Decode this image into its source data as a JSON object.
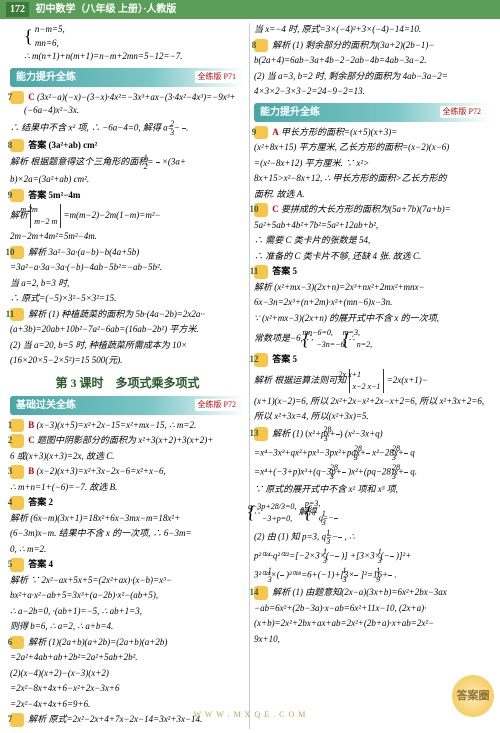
{
  "header": {
    "page": "172",
    "title": "初中数学（八年级 上册）·人教版"
  },
  "sections": {
    "s1": {
      "title": "能力提升全练",
      "ref": "全练版 P71"
    },
    "s2": {
      "title": "基础过关全练",
      "ref": "全练版 P72"
    },
    "s3": {
      "title": "能力提升全练",
      "ref": "全练版 P72"
    }
  },
  "lesson": "第 3 课时　多项式乘多项式",
  "left": {
    "top1": "n−m=5,",
    "top2": "mn=6,",
    "top3": "∴ m(n+1)+n(m+1)=n−m+2mn=5−12=−7.",
    "q7n": "7",
    "q7a": "C",
    "q7l1": "(3x²−a)(−x)−(3−x)·4x²=−3x³+ax−(3·4x²−4x³)=−9x³+(−6a−4)x²−3x.",
    "q7l2": "∴ 结果中不含 x² 项, ∴ −6a−4=0, 解得 a=−",
    "q7f": "2/3",
    "q8n": "8",
    "q8t": "答案  (3a²+ab) cm²",
    "q8l1": "解析  根据题意得这个三角形的面积=",
    "q8f": "1/2",
    "q8l1b": "×(3a+",
    "q8l2": "b)×2a=(3a²+ab) cm².",
    "q9n": "9",
    "q9t": "答案  5m²−4m",
    "q9l1": "解析",
    "q9d": "m  2m / m−2  m",
    "q9l1b": "=m(m−2)−2m(1−m)=m²−",
    "q9l2": "2m−2m+4m²=5m²−4m.",
    "q10n": "10",
    "q10l1": "解析  3a²−3a·(a−b)−b(4a+5b)",
    "q10l2": "=3a²−a·3a−3a·(−b)−4ab−5b²=−ab−5b².",
    "q10l3": "当 a=2, b=3 时,",
    "q10l4": "∴ 原式=(−5)×3²−5×3²=15.",
    "q11n": "11",
    "q11l1": "解析  (1) 种植蔬菜的面积为 5b·(4a−2b)=2x2a··",
    "q11l2": "(a+3b)=20ab+10b²−7a²−6ab=(16ab−2b²) 平方米.",
    "q11l3": "(2) 当 a=20, b=5 时, 种植蔬菜所需成本为 10×",
    "q11l4": "(16×20×5−2×5²)=15 500(元)."
  },
  "leftB": {
    "q1n": "1",
    "q1a": "B",
    "q1t": "(x−3)(x+5)=x²+2x−15=x²+mx−15, ∴ m=2.",
    "q2n": "2",
    "q2a": "C",
    "q2t": "题图中阴影部分的面积为 x²+3(x+2)+3(x+2)+",
    "q2l2": "6 或(x+3)(x+3)=2x, 故选 C.",
    "q3n": "3",
    "q3a": "B",
    "q3t": "(x−2)(x+3)=x²+3x−2x−6=x²+x−6,",
    "q3l2": "∴ m+n=1+(−6)=−7. 故选 B.",
    "q4n": "4",
    "q4t": "答案  2",
    "q4l1": "解析  (6x−m)(3x+1)=18x²+6x−3mx−m=18x²+",
    "q4l2": "(6−3m)x−m. 结果中不含 x 的一次项, ∴ 6−3m=",
    "q4l3": "0, ∴ m=2.",
    "q5n": "5",
    "q5t": "答案  4",
    "q5l1": "解析  ∵ 2x²−ax+5x+5=(2x²+ax)·(x−b)=x³−",
    "q5l2": "bx²+a·x²−ab+5=3x³+(a−2b)·x²−(ab+5),",
    "q5l3": "∴ a−2b=0, ·(ab+1)=−5, ∴ ab+1=3,",
    "q5l4": "则得 b=6, ∴ a=2, ∴ a+b=4.",
    "q6n": "6",
    "q6l1": "解析  (1)(2a+b)(a+2b)=(2a+b)(a+2b)",
    "q6l2": "=2a²+4ab+ab+2b²=2a²+5ab+2b².",
    "q6l3": "(2)(x−4)(x+2)−(x−3)(x+2)",
    "q6l4": "=2x²−8x+4x+6−x²+2x−3x+6",
    "q6l5": "=2x²−4x+4x+6=9+6.",
    "q7bn": "7",
    "q7bl": "解析  原式=2x²−2x+4+7x−2x−14=3x²+3x−14."
  },
  "right": {
    "top1": "当 x=−4 时, 原式=3×(−4)²+3×(−4)−14=10.",
    "q8n": "8",
    "q8l1": "解析  (1) 剩余部分的面积为(3a+2)(2b−1)−",
    "q8l2": "b(2a+4)=6ab−3a+4b−2−2ab−4b=4ab−3a−2.",
    "q8l3": "(2) 当 a=3, b=2 时, 剩余部分的面积为 4ab−3a−2=",
    "q8l4": "4×3×2−3×3−2=24−9−2=13.",
    "q9n": "9",
    "q9a": "A",
    "q9t": "甲长方形的面积=(x+5)(x+3)=",
    "q9l2": "(x²+8x+15) 平方厘米, 乙长方形的面积=(x−2)(x−6)",
    "q9l3": "=(x²−8x+12) 平方厘米. ∵ x²>",
    "q9l4": "8x+15>x²−8x+12, ∴ 甲长方形的面积>乙长方形的",
    "q9l5": "面积. 故选 A.",
    "q10n": "10",
    "q10a": "C",
    "q10t": "要拼成的大长方形的面积为(5a+7b)(7a+b)=",
    "q10l2": "5a²+5ab+4b²+7b²=5a²+12ab+b²,",
    "q10l3": "∴ 需要 C 类卡片的张数是 54,",
    "q10l4": "∴ 准备的 C 类卡片不够, 还缺 4 张. 故选 C.",
    "q11n": "11",
    "q11t": "答案  5",
    "q11l1": "解析  (x²+mx−3)(2x+n)=2x³+nx²+2mx²+mnx−",
    "q11l2": "6x−3n=2x³+(n+2m)·x²+(mn−6)x−3n.",
    "q11l3": "∵ (x²+mx−3)(2x+n) 的展开式中不含 x 的一次项,",
    "q11l4": "常数项是−6, ∴",
    "q11b": "mn−6=0, / −3n=−6,",
    "q11l4b": "∴",
    "q11b2": "m=3, / n=2,",
    "q12n": "12",
    "q12t": "答案  5",
    "q12l1": "解析  根据运算法则可知",
    "q12d": "2x  x+1 / x−2  x−1",
    "q12l1b": "=2x(x+1)−",
    "q12l2": "(x+1)(x−2)=6, 所以 2x²+2x−x²+2x−x+2=6, 所以 x²+3x+2=6,",
    "q12l3": "所以 x²+3x=4, 所以(x²+3x)=5.",
    "q13n": "13",
    "q13l1": "解析  (1)",
    "q13p1": "x²+px+",
    "q13f1": "28/3",
    "q13p2": "(x²−3x+q)",
    "q13l2": "=x⁴−3x³+qx²+px³−3px²+pqx+",
    "q13f2": "28/3",
    "q13l2b": "x²−28x+",
    "q13f3": "28/3",
    "q13l2c": "q",
    "q13l3": "=x⁴+(−3+p)x³+(q−3p+",
    "q13f4": "28/3",
    "q13l3b": ")x²+(pq−28)x+",
    "q13f5": "28/3",
    "q13l3c": "q.",
    "q13l4": "∵ 原式的展开式中不含 x² 项和 x³ 项,",
    "q13l5": "∴",
    "q13b": "q−3p+28/3=0, / −3+p=0,",
    "q13l5b": "解得",
    "q13b2": "p=3, / q=−1/3",
    "q13l6": "(2) 由 (1) 知 p=3, q=−",
    "q13f6": "1/3",
    "q13l6b": ", ∴",
    "q13l7": "p²⁰²⁴·q²⁰²²=[−2×3×(−",
    "q13f7": "1/3",
    "q13l7b": ")]",
    "q13l7c": "+[3×3×(−",
    "q13f8": "1/3",
    "q13l7d": ")]²+",
    "q13l8": "3²⁰²⁴×(",
    "q13f9": "1/3",
    "q13l8b": ")²⁰¹⁸=6+(−1)+[3×",
    "q13f10": "1/3",
    "q13l8c": "]²=16+",
    "q13f11": "1/9",
    "q13l8d": ".",
    "q14n": "14",
    "q14l1": "解析  (1) 由题意知(2x−a)(3x+b)=6x²+2bx−3ax",
    "q14l2": "−ab=6x²+(2b−3a)·x−ab=6x²+11x−10, (2x+a)·",
    "q14l3": "(x+b)=2x²+2bx+ax+ab=2x²+(2b+a)·x+ab=2x²−",
    "q14l4": "9x+10,"
  },
  "watermark": "答案圈",
  "url": "W W W . M X Q E . C O M"
}
